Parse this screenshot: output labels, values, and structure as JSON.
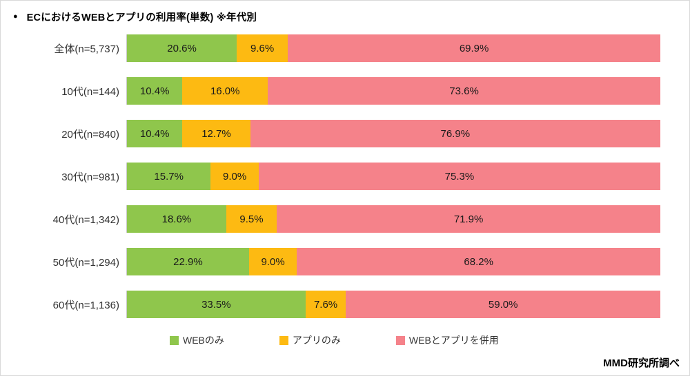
{
  "header": {
    "bullet": "●",
    "title": "ECにおけるWEBとアプリの利用率(単数) ※年代別"
  },
  "source": "MMD研究所調べ",
  "chart_data": {
    "type": "bar",
    "orientation": "horizontal",
    "stacked": true,
    "grid": false,
    "xlim": [
      0,
      100
    ],
    "value_suffix": "%",
    "value_decimals": 1,
    "legend_position": "bottom",
    "categories": [
      "全体(n=5,737)",
      "10代(n=144)",
      "20代(n=840)",
      "30代(n=981)",
      "40代(n=1,342)",
      "50代(n=1,294)",
      "60代(n=1,136)"
    ],
    "series": [
      {
        "key": "web-only",
        "name": "WEBのみ",
        "color": "#8FC64C",
        "values": [
          20.6,
          10.4,
          10.4,
          15.7,
          18.6,
          22.9,
          33.5
        ]
      },
      {
        "key": "app-only",
        "name": "アプリのみ",
        "color": "#FDBA12",
        "values": [
          9.6,
          16.0,
          12.7,
          9.0,
          9.5,
          9.0,
          7.6
        ]
      },
      {
        "key": "web-and-app",
        "name": "WEBとアプリを併用",
        "color": "#F5828A",
        "values": [
          69.9,
          73.6,
          76.9,
          75.3,
          71.9,
          68.2,
          59.0
        ]
      }
    ]
  }
}
